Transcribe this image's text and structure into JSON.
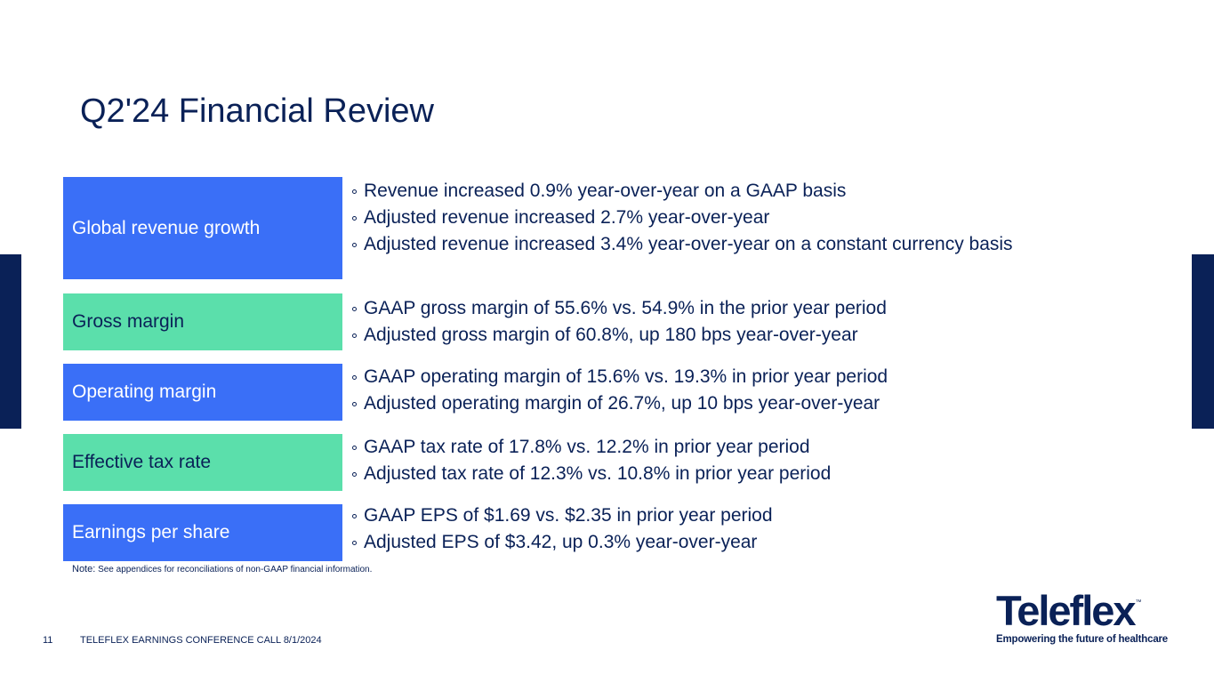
{
  "slide": {
    "title": "Q2'24 Financial Review",
    "note_key": "Note:",
    "note_text": " See appendices for reconciliations of non-GAAP financial information.",
    "page_number": "11",
    "footer": "TELEFLEX EARNINGS CONFERENCE CALL 8/1/2024"
  },
  "rows": [
    {
      "label": "Global revenue growth",
      "bullets": [
        "Revenue increased 0.9% year-over-year on a GAAP basis",
        "Adjusted revenue increased 2.7% year-over-year",
        "Adjusted revenue increased 3.4% year-over-year on a constant currency basis"
      ]
    },
    {
      "label": "Gross margin",
      "bullets": [
        "GAAP gross margin of 55.6% vs. 54.9% in the prior year period",
        "Adjusted gross margin of 60.8%, up 180 bps year-over-year"
      ]
    },
    {
      "label": "Operating margin",
      "bullets": [
        "GAAP operating margin of 15.6% vs. 19.3% in prior year period",
        "Adjusted operating margin of 26.7%, up 10 bps year-over-year"
      ]
    },
    {
      "label": "Effective tax rate",
      "bullets": [
        "GAAP tax rate of 17.8% vs. 12.2% in prior year period",
        "Adjusted tax rate of 12.3% vs. 10.8% in prior year period"
      ]
    },
    {
      "label": "Earnings per share",
      "bullets": [
        "GAAP EPS of $1.69 vs. $2.35 in prior year period",
        "Adjusted EPS of $3.42, up 0.3% year-over-year"
      ]
    }
  ],
  "logo": {
    "wordmark": "Teleflex",
    "trademark": "™",
    "tagline": "Empowering the future of healthcare"
  },
  "colors": {
    "navy": "#0a2157",
    "blue": "#3a6ff7",
    "green": "#5bdfab"
  }
}
